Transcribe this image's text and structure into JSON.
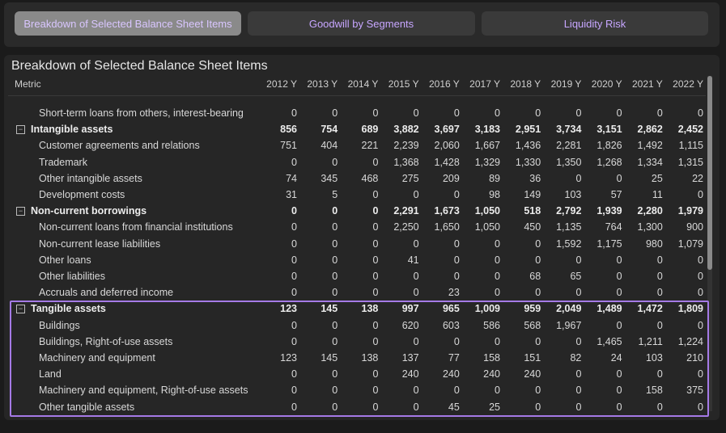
{
  "tabs": [
    "Breakdown of Selected Balance Sheet Items",
    "Goodwill by Segments",
    "Liquidity Risk"
  ],
  "panel": {
    "title": "Breakdown of Selected Balance Sheet Items"
  },
  "table": {
    "header": [
      "Metric",
      "2012 Y",
      "2013 Y",
      "2014 Y",
      "2015 Y",
      "2016 Y",
      "2017 Y",
      "2018 Y",
      "2019 Y",
      "2020 Y",
      "2021 Y",
      "2022 Y"
    ],
    "rows": [
      {
        "label": "Short-term loans from others, interest-bearing",
        "group": false,
        "values": [
          "0",
          "0",
          "0",
          "0",
          "0",
          "0",
          "0",
          "0",
          "0",
          "0",
          "0"
        ]
      },
      {
        "label": "Intangible assets",
        "group": true,
        "values": [
          "856",
          "754",
          "689",
          "3,882",
          "3,697",
          "3,183",
          "2,951",
          "3,734",
          "3,151",
          "2,862",
          "2,452"
        ]
      },
      {
        "label": "Customer agreements and relations",
        "group": false,
        "values": [
          "751",
          "404",
          "221",
          "2,239",
          "2,060",
          "1,667",
          "1,436",
          "2,281",
          "1,826",
          "1,492",
          "1,115"
        ]
      },
      {
        "label": "Trademark",
        "group": false,
        "values": [
          "0",
          "0",
          "0",
          "1,368",
          "1,428",
          "1,329",
          "1,330",
          "1,350",
          "1,268",
          "1,334",
          "1,315"
        ]
      },
      {
        "label": "Other intangible assets",
        "group": false,
        "values": [
          "74",
          "345",
          "468",
          "275",
          "209",
          "89",
          "36",
          "0",
          "0",
          "25",
          "22"
        ]
      },
      {
        "label": "Development costs",
        "group": false,
        "values": [
          "31",
          "5",
          "0",
          "0",
          "0",
          "98",
          "149",
          "103",
          "57",
          "11",
          "0"
        ]
      },
      {
        "label": "Non-current borrowings",
        "group": true,
        "values": [
          "0",
          "0",
          "0",
          "2,291",
          "1,673",
          "1,050",
          "518",
          "2,792",
          "1,939",
          "2,280",
          "1,979"
        ]
      },
      {
        "label": "Non-current loans from financial institutions",
        "group": false,
        "values": [
          "0",
          "0",
          "0",
          "2,250",
          "1,650",
          "1,050",
          "450",
          "1,135",
          "764",
          "1,300",
          "900"
        ]
      },
      {
        "label": "Non-current lease liabilities",
        "group": false,
        "values": [
          "0",
          "0",
          "0",
          "0",
          "0",
          "0",
          "0",
          "1,592",
          "1,175",
          "980",
          "1,079"
        ]
      },
      {
        "label": "Other loans",
        "group": false,
        "values": [
          "0",
          "0",
          "0",
          "41",
          "0",
          "0",
          "0",
          "0",
          "0",
          "0",
          "0"
        ]
      },
      {
        "label": "Other liabilities",
        "group": false,
        "values": [
          "0",
          "0",
          "0",
          "0",
          "0",
          "0",
          "68",
          "65",
          "0",
          "0",
          "0"
        ]
      },
      {
        "label": "Accruals and deferred income",
        "group": false,
        "values": [
          "0",
          "0",
          "0",
          "0",
          "23",
          "0",
          "0",
          "0",
          "0",
          "0",
          "0"
        ]
      },
      {
        "label": "Tangible assets",
        "group": true,
        "values": [
          "123",
          "145",
          "138",
          "997",
          "965",
          "1,009",
          "959",
          "2,049",
          "1,489",
          "1,472",
          "1,809"
        ]
      },
      {
        "label": "Buildings",
        "group": false,
        "values": [
          "0",
          "0",
          "0",
          "620",
          "603",
          "586",
          "568",
          "1,967",
          "0",
          "0",
          "0"
        ]
      },
      {
        "label": "Buildings, Right-of-use assets",
        "group": false,
        "values": [
          "0",
          "0",
          "0",
          "0",
          "0",
          "0",
          "0",
          "0",
          "1,465",
          "1,211",
          "1,224"
        ]
      },
      {
        "label": "Machinery and equipment",
        "group": false,
        "values": [
          "123",
          "145",
          "138",
          "137",
          "77",
          "158",
          "151",
          "82",
          "24",
          "103",
          "210"
        ]
      },
      {
        "label": "Land",
        "group": false,
        "values": [
          "0",
          "0",
          "0",
          "240",
          "240",
          "240",
          "240",
          "0",
          "0",
          "0",
          "0"
        ]
      },
      {
        "label": "Machinery and equipment, Right-of-use assets",
        "group": false,
        "values": [
          "0",
          "0",
          "0",
          "0",
          "0",
          "0",
          "0",
          "0",
          "0",
          "158",
          "375"
        ]
      },
      {
        "label": "Other tangible assets",
        "group": false,
        "values": [
          "0",
          "0",
          "0",
          "0",
          "45",
          "25",
          "0",
          "0",
          "0",
          "0",
          "0"
        ]
      }
    ]
  }
}
